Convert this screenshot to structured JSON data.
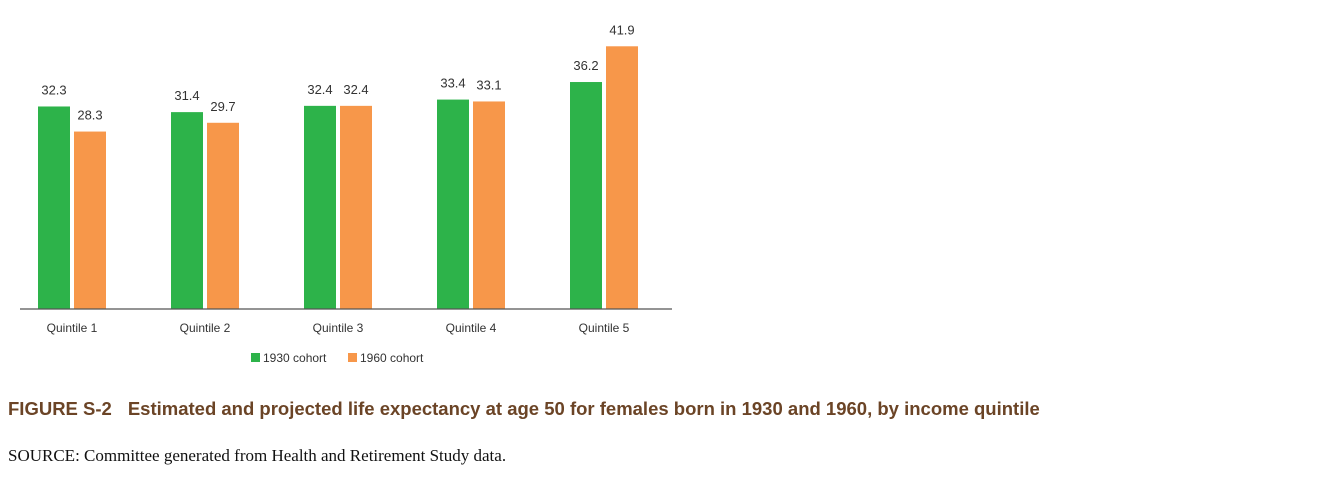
{
  "chart_data": {
    "type": "bar",
    "categories": [
      "Quintile 1",
      "Quintile 2",
      "Quintile 3",
      "Quintile 4",
      "Quintile 5"
    ],
    "series": [
      {
        "name": "1930 cohort",
        "color": "#2db34a",
        "values": [
          32.3,
          31.4,
          32.4,
          33.4,
          36.2
        ]
      },
      {
        "name": "1960 cohort",
        "color": "#f7974a",
        "values": [
          28.3,
          29.7,
          32.4,
          33.1,
          41.9
        ]
      }
    ],
    "value_labels": [
      [
        "32.3",
        "31.4",
        "32.4",
        "33.4",
        "36.2"
      ],
      [
        "28.3",
        "29.7",
        "32.4",
        "33.1",
        "41.9"
      ]
    ],
    "ylim": [
      0,
      43
    ],
    "grid": false,
    "legend_position": "bottom-center",
    "title": "",
    "xlabel": "",
    "ylabel": ""
  },
  "caption": {
    "figure_number": "FIGURE S-2",
    "text": "Estimated and projected life expectancy at age 50 for females born in 1930 and 1960, by income quintile"
  },
  "source": "SOURCE: Committee generated from Health and Retirement Study data.",
  "colors": {
    "caption": "#6b4426",
    "axis": "#555555"
  }
}
